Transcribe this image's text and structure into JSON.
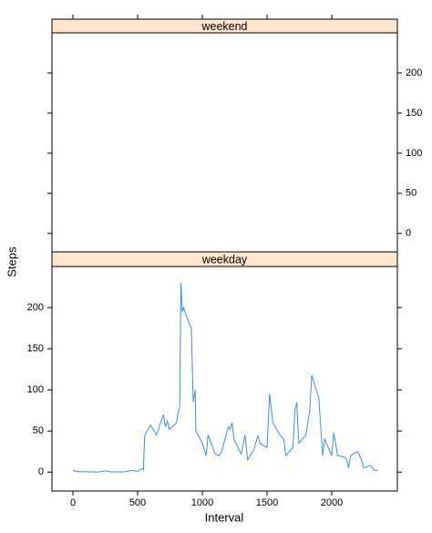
{
  "chart_data": {
    "type": "line",
    "xlabel": "Interval",
    "ylabel": "Steps",
    "xlim": [
      -162,
      2507
    ],
    "ylim": [
      -23,
      250
    ],
    "xticks": [
      0,
      500,
      1000,
      1500,
      2000
    ],
    "yticks": [
      0,
      50,
      100,
      150,
      200
    ],
    "panels": [
      {
        "title": "weekend",
        "color": "#3e8ee8",
        "x": [],
        "values": []
      },
      {
        "title": "weekday",
        "color": "#3e8ee8",
        "x": [
          0,
          25,
          50,
          100,
          150,
          200,
          250,
          300,
          400,
          450,
          500,
          530,
          545,
          550,
          555,
          600,
          630,
          645,
          700,
          715,
          730,
          745,
          800,
          815,
          825,
          835,
          845,
          855,
          900,
          915,
          930,
          945,
          950,
          1000,
          1030,
          1045,
          1100,
          1130,
          1150,
          1200,
          1215,
          1230,
          1245,
          1300,
          1330,
          1350,
          1400,
          1430,
          1445,
          1500,
          1520,
          1545,
          1600,
          1630,
          1645,
          1700,
          1715,
          1730,
          1745,
          1800,
          1815,
          1830,
          1845,
          1900,
          1930,
          1945,
          2000,
          2015,
          2030,
          2045,
          2100,
          2115,
          2130,
          2145,
          2200,
          2230,
          2245,
          2300,
          2330,
          2355
        ],
        "values": [
          2,
          1,
          0.5,
          0.5,
          0.3,
          0.2,
          1.5,
          0.2,
          0.5,
          2,
          1,
          4,
          3,
          25,
          45,
          57,
          50,
          45,
          70,
          55,
          62,
          52,
          60,
          73,
          80,
          230,
          195,
          200,
          180,
          175,
          85,
          100,
          50,
          35,
          20,
          45,
          22,
          20,
          25,
          55,
          52,
          60,
          40,
          22,
          45,
          15,
          28,
          45,
          35,
          30,
          95,
          60,
          45,
          40,
          20,
          30,
          75,
          85,
          35,
          45,
          60,
          75,
          118,
          90,
          20,
          40,
          20,
          48,
          35,
          20,
          18,
          15,
          5,
          20,
          25,
          15,
          5,
          8,
          2,
          2
        ]
      }
    ]
  }
}
